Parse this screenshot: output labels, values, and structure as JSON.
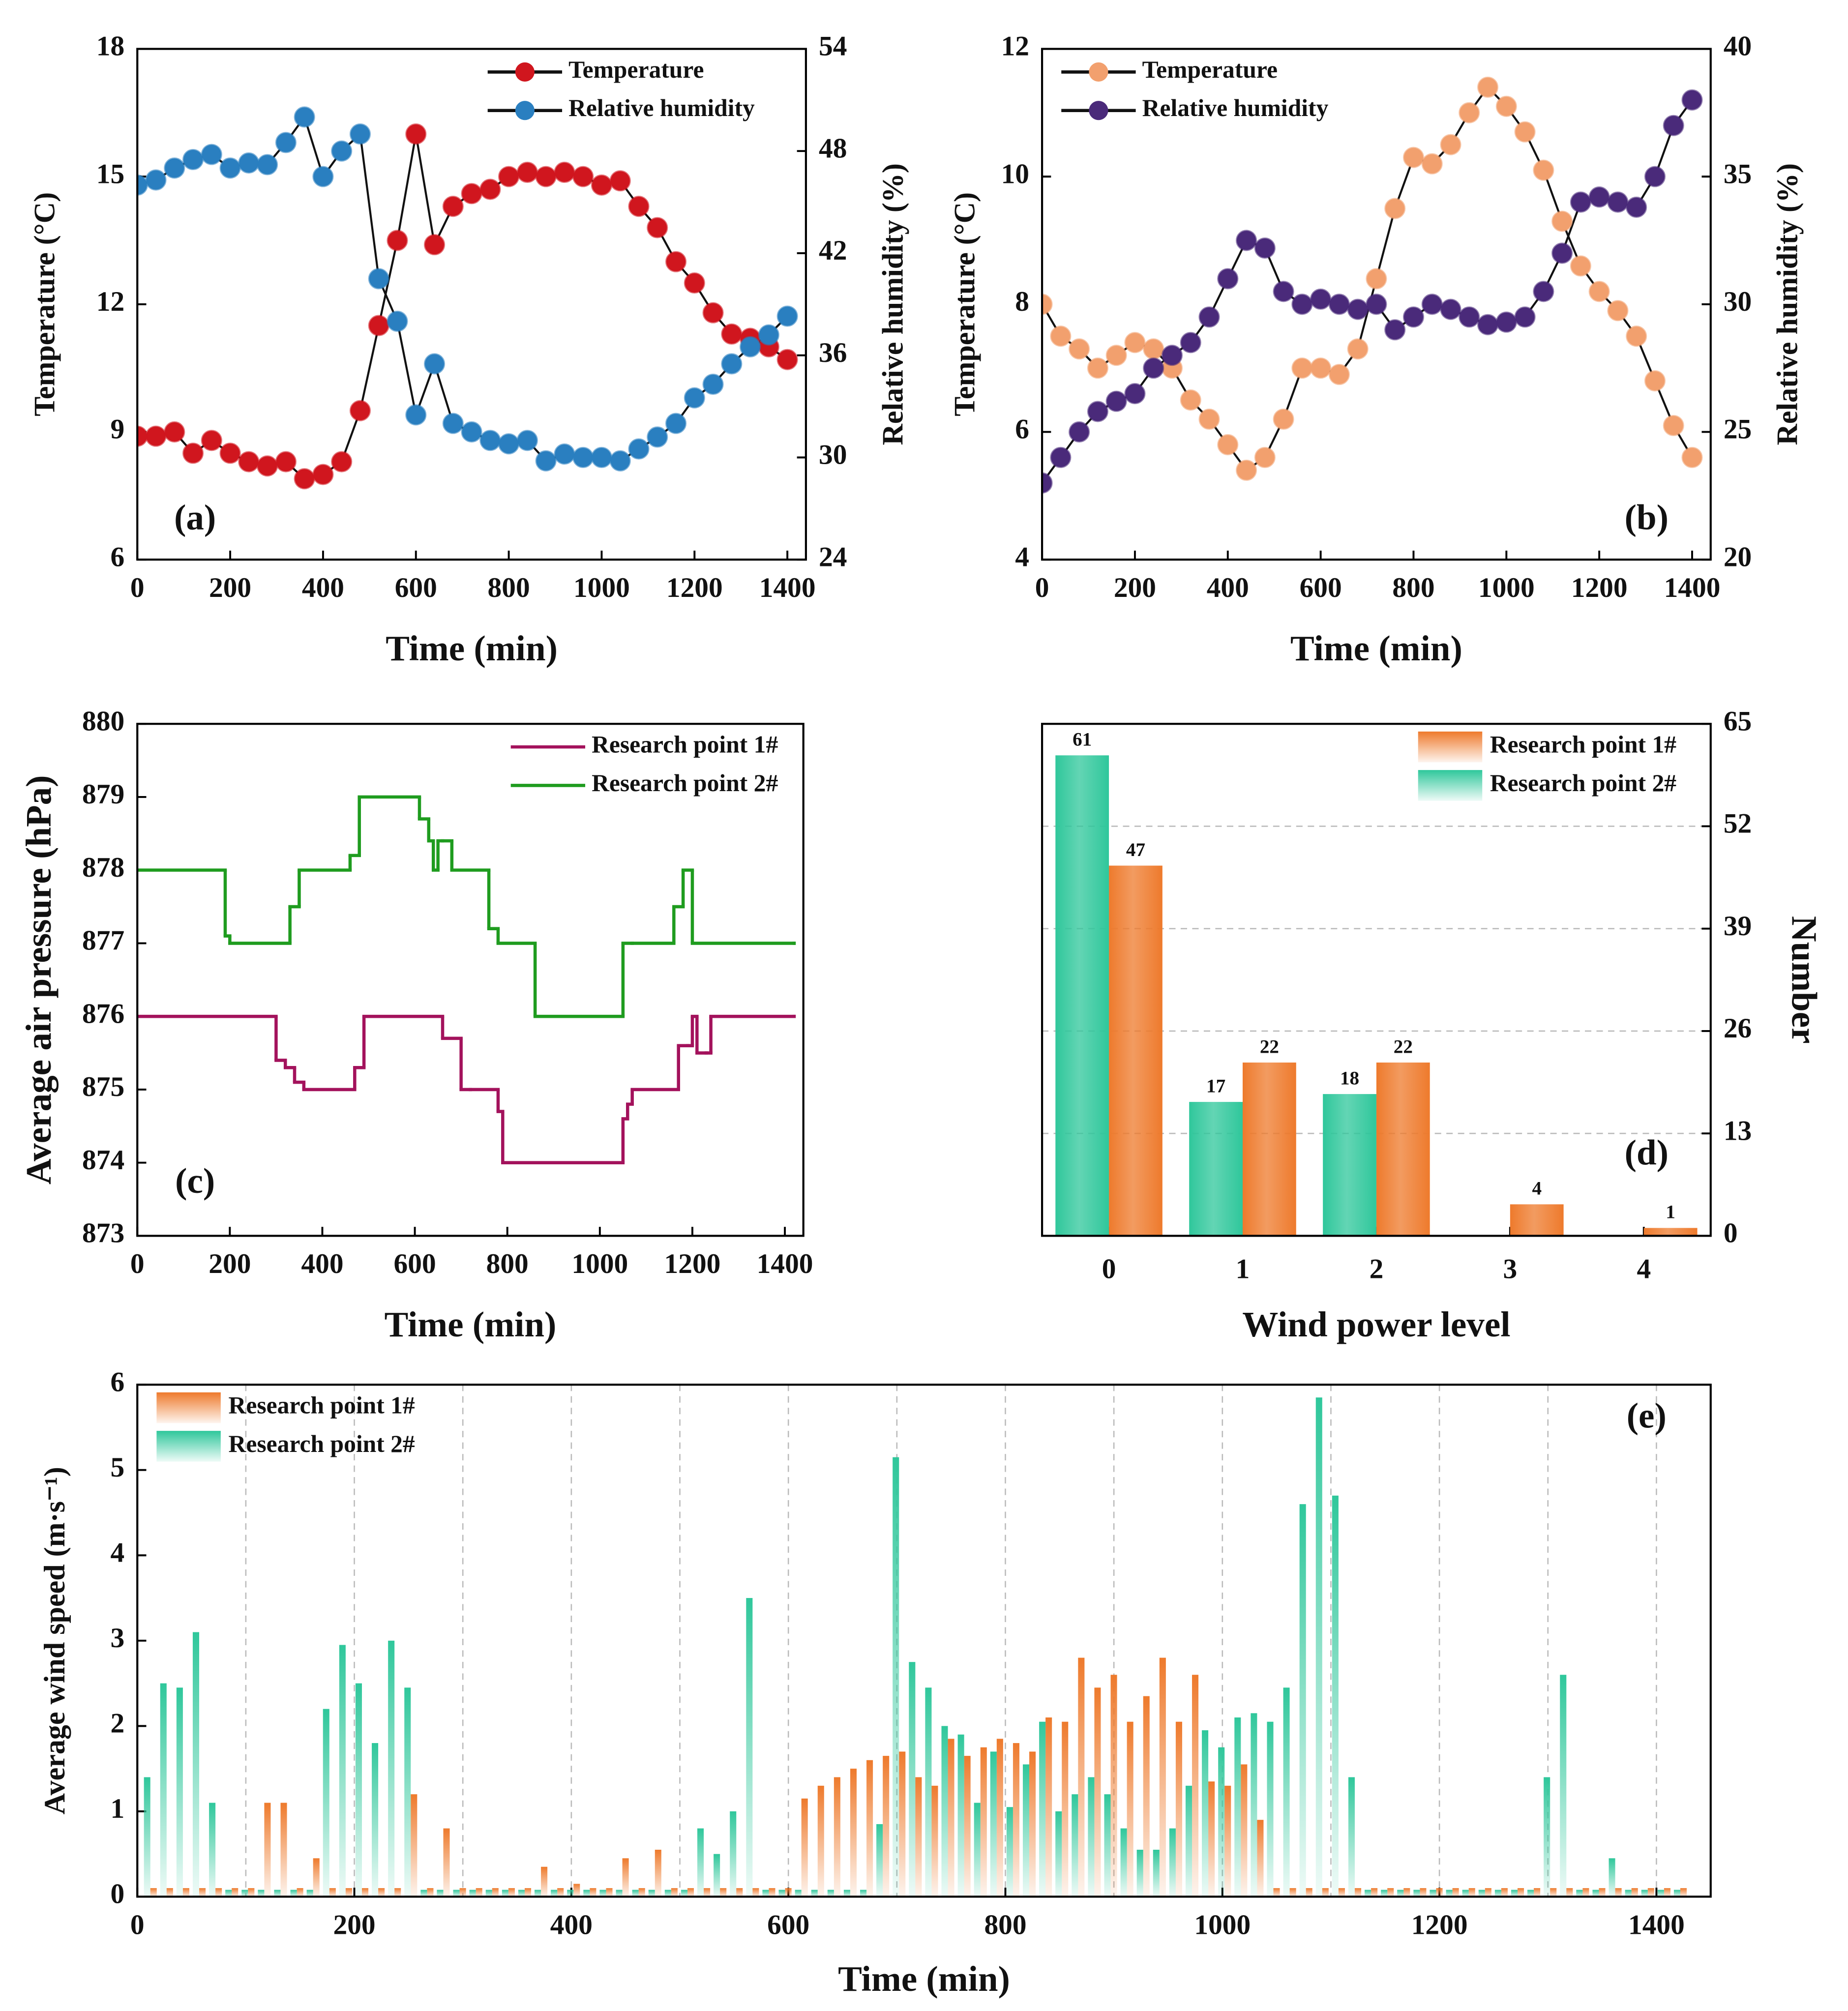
{
  "chart_data": [
    {
      "type": "line",
      "panel": "(a)",
      "xlabel": "Time (min)",
      "ylabel": "Temperature (°C)",
      "y2label": "Relative humidity (%)",
      "markers": true,
      "legend": "upper right",
      "x": [
        0,
        40,
        80,
        120,
        160,
        200,
        240,
        280,
        320,
        360,
        400,
        440,
        480,
        520,
        560,
        600,
        640,
        680,
        720,
        760,
        800,
        840,
        880,
        920,
        960,
        1000,
        1040,
        1080,
        1120,
        1160,
        1200,
        1240,
        1280,
        1320,
        1360,
        1400
      ],
      "xlim": [
        0,
        1440
      ],
      "xticks": [
        0,
        200,
        400,
        600,
        800,
        1000,
        1200,
        1400
      ],
      "ylim": [
        6,
        18
      ],
      "yticks": [
        6,
        9,
        12,
        15,
        18
      ],
      "y2lim": [
        24,
        54
      ],
      "y2ticks": [
        24,
        30,
        36,
        42,
        48,
        54
      ],
      "series": [
        {
          "name": "Temperature",
          "color": "#d0161e",
          "values": [
            8.9,
            8.9,
            9.0,
            8.5,
            8.8,
            8.5,
            8.3,
            8.2,
            8.3,
            7.9,
            8.0,
            8.3,
            9.5,
            11.5,
            13.5,
            16.0,
            13.4,
            14.3,
            14.6,
            14.7,
            15.0,
            15.1,
            15.0,
            15.1,
            15.0,
            14.8,
            14.9,
            14.3,
            13.8,
            13.0,
            12.5,
            11.8,
            11.3,
            11.2,
            11.0,
            10.7
          ]
        },
        {
          "name": "Relative humidity",
          "color": "#2a7fc0",
          "axis": "y2",
          "values": [
            46,
            46.3,
            47,
            47.5,
            47.8,
            47,
            47.3,
            47.2,
            48.5,
            50,
            46.5,
            48,
            49,
            40.5,
            38,
            32.5,
            35.5,
            32,
            31.5,
            31,
            30.8,
            31,
            29.8,
            30.2,
            30,
            30,
            29.8,
            30.5,
            31.2,
            32,
            33.5,
            34.3,
            35.5,
            36.5,
            37.2,
            38.3
          ]
        }
      ]
    },
    {
      "type": "line",
      "panel": "(b)",
      "xlabel": "Time (min)",
      "ylabel": "Temperature (°C)",
      "y2label": "Relative humidity (%)",
      "markers": true,
      "legend": "upper left",
      "x": [
        0,
        40,
        80,
        120,
        160,
        200,
        240,
        280,
        320,
        360,
        400,
        440,
        480,
        520,
        560,
        600,
        640,
        680,
        720,
        760,
        800,
        840,
        880,
        920,
        960,
        1000,
        1040,
        1080,
        1120,
        1160,
        1200,
        1240,
        1280,
        1320,
        1360,
        1400
      ],
      "xlim": [
        0,
        1440
      ],
      "xticks": [
        0,
        200,
        400,
        600,
        800,
        1000,
        1200,
        1400
      ],
      "ylim": [
        4,
        12
      ],
      "yticks": [
        4,
        6,
        8,
        10,
        12
      ],
      "y2lim": [
        20,
        40
      ],
      "y2ticks": [
        20,
        25,
        30,
        35,
        40
      ],
      "series": [
        {
          "name": "Temperature",
          "color": "#f2a06e",
          "values": [
            8.0,
            7.5,
            7.3,
            7.0,
            7.2,
            7.4,
            7.3,
            7.0,
            6.5,
            6.2,
            5.8,
            5.4,
            5.6,
            6.2,
            7.0,
            7.0,
            6.9,
            7.3,
            8.4,
            9.5,
            10.3,
            10.2,
            10.5,
            11.0,
            11.4,
            11.1,
            10.7,
            10.1,
            9.3,
            8.6,
            8.2,
            7.9,
            7.5,
            6.8,
            6.1,
            5.6
          ]
        },
        {
          "name": "Relative humidity",
          "color": "#4a2a7a",
          "axis": "y2",
          "values": [
            23,
            24,
            25,
            25.8,
            26.2,
            26.5,
            27.5,
            28,
            28.5,
            29.5,
            31,
            32.5,
            32.2,
            30.5,
            30,
            30.2,
            30,
            29.8,
            30,
            29,
            29.5,
            30,
            29.8,
            29.5,
            29.2,
            29.3,
            29.5,
            30.5,
            32,
            34,
            34.2,
            34,
            33.8,
            35,
            37,
            38
          ]
        }
      ]
    },
    {
      "type": "step",
      "panel": "(c)",
      "xlabel": "Time (min)",
      "ylabel": "Average air pressure (hPa)",
      "legend": "upper right",
      "xlim": [
        0,
        1440
      ],
      "xticks": [
        0,
        200,
        400,
        600,
        800,
        1000,
        1200,
        1400
      ],
      "ylim": [
        873,
        880
      ],
      "yticks": [
        873,
        874,
        875,
        876,
        877,
        878,
        879,
        880
      ],
      "series": [
        {
          "name": "Research point 1#",
          "color": "#a3125c",
          "x": [
            0,
            300,
            320,
            340,
            360,
            470,
            490,
            660,
            700,
            720,
            780,
            790,
            1050,
            1060,
            1070,
            1170,
            1190,
            1200,
            1210,
            1230,
            1240,
            1420
          ],
          "values": [
            876,
            875.4,
            875.3,
            875.1,
            875,
            875.3,
            876,
            875.7,
            875,
            875,
            874.7,
            874,
            874.6,
            874.8,
            875,
            875.6,
            875.6,
            876,
            875.5,
            875.5,
            876,
            876
          ]
        },
        {
          "name": "Research point 2#",
          "color": "#1f9c1f",
          "x": [
            0,
            190,
            200,
            330,
            350,
            460,
            480,
            610,
            630,
            640,
            650,
            660,
            680,
            760,
            780,
            860,
            1050,
            1070,
            1160,
            1180,
            1200,
            1420
          ],
          "values": [
            878,
            877.1,
            877,
            877.5,
            878,
            878.2,
            879,
            878.7,
            878.4,
            878,
            878.4,
            878.4,
            878,
            877.2,
            877,
            876,
            877,
            877,
            877.5,
            878,
            877,
            877
          ]
        }
      ]
    },
    {
      "type": "bar",
      "panel": "(d)",
      "xlabel": "Wind power level",
      "ylabel": "Number",
      "yaxis_side": "right",
      "grid": "y",
      "legend": "upper right",
      "categories": [
        "0",
        "1",
        "2",
        "3",
        "4"
      ],
      "ylim": [
        0,
        65
      ],
      "yticks": [
        0,
        13,
        26,
        39,
        52,
        65
      ],
      "series": [
        {
          "name": "Research point 1#",
          "color": "#ee7a2c",
          "values": [
            47,
            22,
            22,
            4,
            1
          ]
        },
        {
          "name": "Research point 2#",
          "color": "#2fc79b",
          "values": [
            61,
            17,
            18,
            0,
            0
          ]
        }
      ]
    },
    {
      "type": "bar",
      "panel": "(e)",
      "xlabel": "Time (min)",
      "ylabel": "Average wind speed (m·s⁻¹)",
      "grid": "x",
      "legend": "upper left",
      "x": [
        12,
        27,
        42,
        57,
        72,
        87,
        102,
        117,
        132,
        147,
        162,
        177,
        192,
        207,
        222,
        237,
        252,
        267,
        282,
        297,
        312,
        327,
        342,
        357,
        372,
        387,
        402,
        417,
        432,
        447,
        462,
        477,
        492,
        507,
        522,
        537,
        552,
        567,
        582,
        597,
        612,
        627,
        642,
        657,
        672,
        687,
        702,
        717,
        732,
        747,
        762,
        777,
        792,
        807,
        822,
        837,
        852,
        867,
        882,
        897,
        912,
        927,
        942,
        957,
        972,
        987,
        1002,
        1017,
        1032,
        1047,
        1062,
        1077,
        1092,
        1107,
        1122,
        1137,
        1152,
        1167,
        1182,
        1197,
        1212,
        1227,
        1242,
        1257,
        1272,
        1287,
        1302,
        1317,
        1332,
        1347,
        1362,
        1377,
        1392,
        1407,
        1422
      ],
      "xlim": [
        0,
        1450
      ],
      "xticks": [
        0,
        200,
        400,
        600,
        800,
        1000,
        1200,
        1400
      ],
      "xminorticks": [
        100,
        300,
        500,
        700,
        900,
        1100,
        1300
      ],
      "ylim": [
        0,
        6
      ],
      "yticks": [
        0,
        1,
        2,
        3,
        4,
        5,
        6
      ],
      "series": [
        {
          "name": "Research point 1#",
          "color": "#ee7a2c",
          "values": [
            0.1,
            0.1,
            0.1,
            0.1,
            0.1,
            0.1,
            0.1,
            1.1,
            1.1,
            0.1,
            0.45,
            0.1,
            0.1,
            0.1,
            0.1,
            0.1,
            1.2,
            0.1,
            0.8,
            0.1,
            0.1,
            0.1,
            0.1,
            0.1,
            0.35,
            0.1,
            0.15,
            0.1,
            0.1,
            0.45,
            0.1,
            0.55,
            0.1,
            0.1,
            0.1,
            0.1,
            0.1,
            0.1,
            0.1,
            0.1,
            1.15,
            1.3,
            1.4,
            1.5,
            1.6,
            1.65,
            1.7,
            1.4,
            1.3,
            1.85,
            1.65,
            1.75,
            1.85,
            1.8,
            1.7,
            2.1,
            2.05,
            2.8,
            2.45,
            2.6,
            2.05,
            2.35,
            2.8,
            2.05,
            2.6,
            1.35,
            1.3,
            1.55,
            0.9,
            0.1,
            0.1,
            0.1,
            0.1,
            0.1,
            0.1,
            0.1,
            0.1,
            0.1,
            0.1,
            0.1,
            0.1,
            0.1,
            0.1,
            0.1,
            0.1,
            0.1,
            0.1,
            0.1,
            0.1,
            0.1,
            0.1,
            0.1,
            0.1,
            0.1,
            0.1
          ]
        },
        {
          "name": "Research point 2#",
          "color": "#2fc79b",
          "values": [
            1.4,
            2.5,
            2.45,
            3.1,
            1.1,
            0.08,
            0.08,
            0.08,
            0.08,
            0.08,
            0.08,
            2.2,
            2.95,
            2.5,
            1.8,
            3.0,
            2.45,
            0.08,
            0.08,
            0.08,
            0.08,
            0.08,
            0.08,
            0.08,
            0.08,
            0.08,
            0.08,
            0.08,
            0.08,
            0.08,
            0.08,
            0.08,
            0.08,
            0.08,
            0.8,
            0.5,
            1.0,
            3.5,
            0.08,
            0.08,
            0.08,
            0.08,
            0.08,
            0.08,
            0.08,
            0.85,
            5.15,
            2.75,
            2.45,
            2.0,
            1.9,
            1.1,
            1.7,
            1.05,
            1.55,
            2.05,
            1.0,
            1.2,
            1.4,
            1.2,
            0.8,
            0.55,
            0.55,
            0.8,
            1.3,
            1.95,
            1.75,
            2.1,
            2.15,
            2.05,
            2.45,
            4.6,
            5.85,
            4.7,
            1.4,
            0.08,
            0.08,
            0.08,
            0.08,
            0.08,
            0.08,
            0.08,
            0.08,
            0.08,
            0.08,
            0.08,
            1.4,
            2.6,
            0.08,
            0.08,
            0.45,
            0.08,
            0.08,
            0.08,
            0.08
          ]
        }
      ]
    }
  ]
}
